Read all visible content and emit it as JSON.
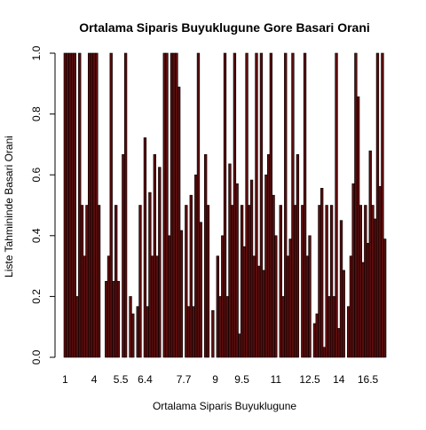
{
  "chart_data": {
    "type": "bar",
    "title": "Ortalama Siparis Buyuklugune Gore Basari Orani",
    "xlabel": "Ortalama Siparis Buyuklugune",
    "ylabel": "Liste Tahmininde Basari Orani",
    "ylim": [
      0,
      1
    ],
    "yticks": [
      "0.0",
      "0.2",
      "0.4",
      "0.6",
      "0.8",
      "1.0"
    ],
    "xtick_labels": [
      {
        "label": "1",
        "index": 0
      },
      {
        "label": "4",
        "index": 12
      },
      {
        "label": "5.5",
        "index": 23
      },
      {
        "label": "6.4",
        "index": 33
      },
      {
        "label": "7.7",
        "index": 49
      },
      {
        "label": "9",
        "index": 62
      },
      {
        "label": "9.5",
        "index": 73
      },
      {
        "label": "11",
        "index": 87
      },
      {
        "label": "12.5",
        "index": 101
      },
      {
        "label": "14",
        "index": 113
      },
      {
        "label": "16.5",
        "index": 125
      }
    ],
    "bar_color": "#5a0d0d",
    "bar_border": "#000000",
    "values": [
      1,
      1,
      1,
      1,
      1,
      0.2,
      1,
      0.5,
      0.333,
      0.5,
      1,
      1,
      1,
      1,
      0.5,
      0,
      0,
      0.25,
      0.333,
      1,
      0.25,
      0.5,
      0.25,
      0,
      0.667,
      1,
      0,
      0.2,
      0.143,
      0,
      0.167,
      0.5,
      0,
      0.722,
      0.167,
      0.542,
      0.333,
      0.667,
      0.333,
      0.625,
      0,
      1,
      1,
      0.4,
      1,
      1,
      1,
      0.889,
      0.417,
      0,
      0.5,
      0.167,
      0.533,
      0.167,
      0.6,
      1,
      0.444,
      0,
      0.667,
      0.5,
      0,
      0.154,
      0,
      0.333,
      0.2,
      0.4,
      1,
      0.2,
      0.636,
      0.5,
      1,
      0.571,
      0.077,
      0.5,
      0.364,
      1,
      0.5,
      0.583,
      0.333,
      1,
      0.3,
      1,
      0.286,
      0.6,
      0.667,
      1,
      0.533,
      0.4,
      0,
      0.5,
      0.2,
      1,
      0.333,
      0.389,
      1,
      0.5,
      0.667,
      0,
      0.5,
      1,
      0.333,
      0.4,
      0,
      0.111,
      0.143,
      0.5,
      0.556,
      0.033,
      0.5,
      0.2,
      0.5,
      0.2,
      1,
      0.095,
      0.45,
      0.286,
      0,
      0.167,
      0.333,
      0.571,
      1,
      0.857,
      0.5,
      0.312,
      0.5,
      0.375,
      0.679,
      0.5,
      0.455,
      1,
      0.562,
      1,
      0.389
    ]
  }
}
